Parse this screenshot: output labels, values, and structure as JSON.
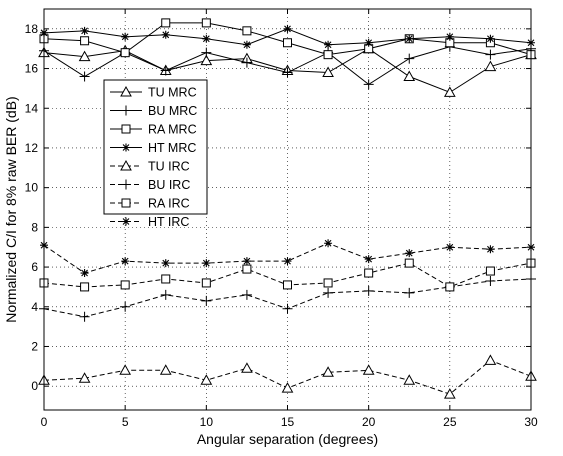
{
  "chart_data": {
    "type": "line",
    "title": "",
    "xlabel": "Angular separation (degrees)",
    "ylabel": "Normalized C/I for 8% raw BER (dB)",
    "xlim": [
      0,
      30
    ],
    "ylim": [
      -1.2,
      19
    ],
    "x_ticks": [
      0,
      5,
      10,
      15,
      20,
      25,
      30
    ],
    "y_ticks": [
      0,
      2,
      4,
      6,
      8,
      10,
      12,
      14,
      16,
      18
    ],
    "x_tick_labels": [
      "0",
      "5",
      "10",
      "15",
      "20",
      "25",
      "30"
    ],
    "y_tick_labels": [
      "0",
      "2",
      "4",
      "6",
      "8",
      "10",
      "12",
      "14",
      "16",
      "18"
    ],
    "grid": "dotted",
    "legend_position": "upper-left",
    "x": [
      0,
      2.5,
      5,
      7.5,
      10,
      12.5,
      15,
      17.5,
      20,
      22.5,
      25,
      27.5,
      30
    ],
    "series": [
      {
        "name": "TU MRC",
        "marker": "triangle",
        "dash": "solid",
        "values": [
          16.8,
          16.6,
          16.9,
          15.9,
          16.4,
          16.5,
          15.9,
          15.8,
          17.0,
          15.6,
          14.8,
          16.1,
          16.7
        ]
      },
      {
        "name": "BU MRC",
        "marker": "plus",
        "dash": "solid",
        "values": [
          16.9,
          15.6,
          16.8,
          15.9,
          16.8,
          16.3,
          15.8,
          16.8,
          15.2,
          16.5,
          17.1,
          16.7,
          17.0
        ]
      },
      {
        "name": "RA MRC",
        "marker": "square",
        "dash": "solid",
        "values": [
          17.5,
          17.4,
          16.8,
          18.3,
          18.3,
          17.9,
          17.3,
          16.7,
          17.0,
          17.5,
          17.3,
          17.3,
          16.7
        ]
      },
      {
        "name": "HT MRC",
        "marker": "star",
        "dash": "solid",
        "values": [
          17.8,
          17.9,
          17.6,
          17.7,
          17.5,
          17.2,
          18.0,
          17.2,
          17.3,
          17.5,
          17.6,
          17.5,
          17.3
        ]
      },
      {
        "name": "TU IRC",
        "marker": "triangle",
        "dash": "dashed",
        "values": [
          0.3,
          0.4,
          0.8,
          0.8,
          0.3,
          0.9,
          -0.1,
          0.7,
          0.8,
          0.3,
          -0.4,
          1.3,
          0.5
        ]
      },
      {
        "name": "BU IRC",
        "marker": "plus",
        "dash": "dashed",
        "values": [
          3.9,
          3.5,
          4.0,
          4.6,
          4.3,
          4.6,
          3.9,
          4.7,
          4.8,
          4.7,
          5.0,
          5.3,
          5.4
        ]
      },
      {
        "name": "RA IRC",
        "marker": "square",
        "dash": "dashed",
        "values": [
          5.2,
          5.0,
          5.1,
          5.4,
          5.2,
          5.9,
          5.1,
          5.2,
          5.7,
          6.2,
          5.0,
          5.8,
          6.2
        ]
      },
      {
        "name": "HT IRC",
        "marker": "star",
        "dash": "dashed",
        "values": [
          7.1,
          5.7,
          6.3,
          6.2,
          6.2,
          6.3,
          6.3,
          7.2,
          6.4,
          6.7,
          7.0,
          6.9,
          7.0
        ]
      }
    ]
  }
}
